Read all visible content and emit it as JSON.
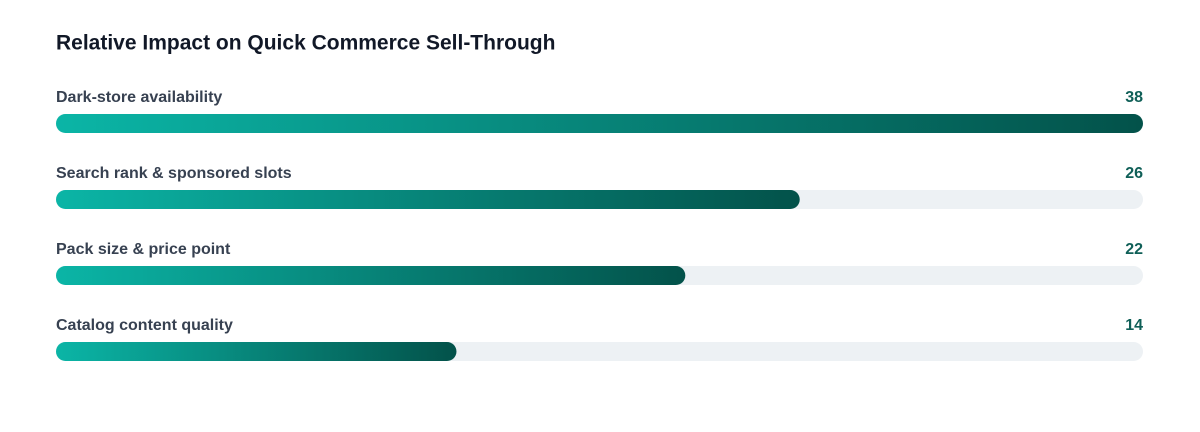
{
  "chart_data": {
    "type": "bar",
    "orientation": "horizontal",
    "title": "Relative Impact on Quick Commerce Sell-Through",
    "categories": [
      "Dark-store availability",
      "Search rank & sponsored slots",
      "Pack size & price point",
      "Catalog content quality"
    ],
    "values": [
      38,
      26,
      22,
      14
    ],
    "gradient": [
      "#0bb5a6",
      "#03524a"
    ],
    "track_color": "#edf1f4"
  }
}
